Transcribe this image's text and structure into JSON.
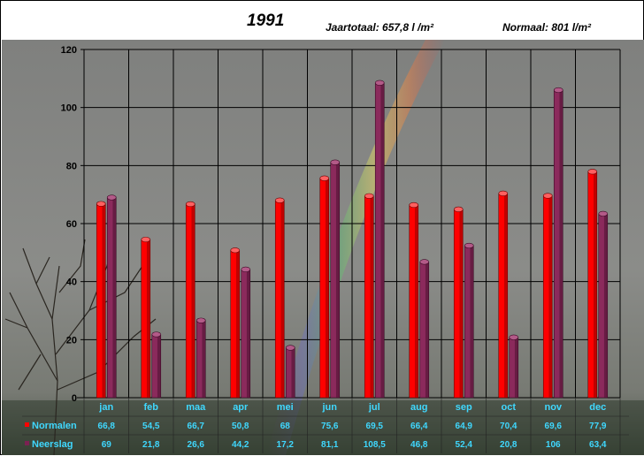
{
  "header": {
    "title": "1991",
    "annual_total": "Jaartotaal: 657,8  l /m²",
    "normal_total": "Normaal: 801  l/m²"
  },
  "chart_data": {
    "type": "bar",
    "title": "1991",
    "categories": [
      "jan",
      "feb",
      "maa",
      "apr",
      "mei",
      "jun",
      "jul",
      "aug",
      "sep",
      "oct",
      "nov",
      "dec"
    ],
    "y_ticks": [
      0,
      20,
      40,
      60,
      80,
      100,
      120
    ],
    "ylim": [
      0,
      120
    ],
    "grid": true,
    "legend": "bottom-left data table",
    "series": [
      {
        "name": "Normalen",
        "color": "#ff0000",
        "values": [
          66.8,
          54.5,
          66.7,
          50.8,
          68,
          75.6,
          69.5,
          66.4,
          64.9,
          70.4,
          69.6,
          77.9
        ],
        "labels": [
          "66,8",
          "54,5",
          "66,7",
          "50,8",
          "68",
          "75,6",
          "69,5",
          "66,4",
          "64,9",
          "70,4",
          "69,6",
          "77,9"
        ]
      },
      {
        "name": "Neerslag",
        "color": "#7b2152",
        "values": [
          69,
          21.8,
          26.6,
          44.2,
          17.2,
          81.1,
          108.5,
          46.8,
          52.4,
          20.8,
          106,
          63.4
        ],
        "labels": [
          "69",
          "21,8",
          "26,6",
          "44,2",
          "17,2",
          "81,1",
          "108,5",
          "46,8",
          "52,4",
          "20,8",
          "106",
          "63,4"
        ]
      }
    ]
  }
}
